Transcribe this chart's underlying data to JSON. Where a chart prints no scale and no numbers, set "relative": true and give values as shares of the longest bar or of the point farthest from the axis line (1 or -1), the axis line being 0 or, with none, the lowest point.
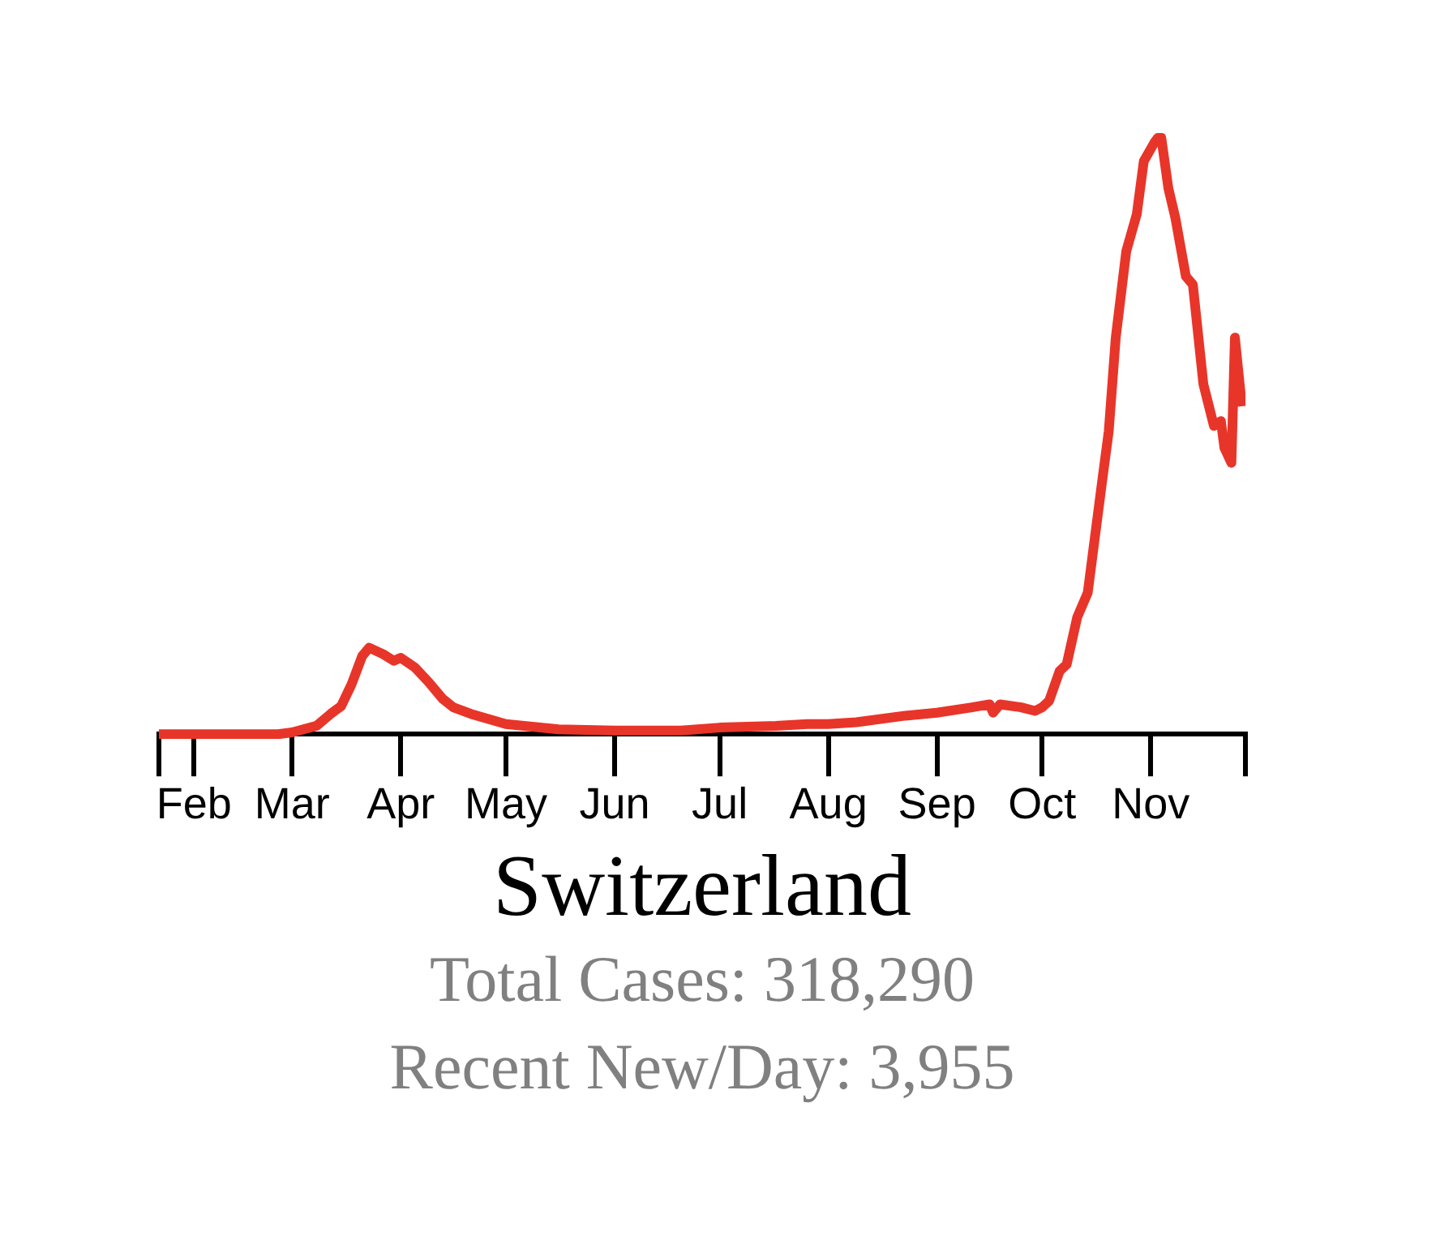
{
  "chart_data": {
    "type": "line",
    "title": "Switzerland",
    "annotations": [
      "Total Cases: 318,290",
      "Recent New/Day: 3,955"
    ],
    "relative": true,
    "legend": false,
    "grid": false,
    "marker": "none",
    "xlim": [
      "--01-22",
      "--11-28"
    ],
    "xticks": [
      {
        "value": "--02-01",
        "label": "Feb"
      },
      {
        "value": "--03-01",
        "label": "Mar"
      },
      {
        "value": "--04-01",
        "label": "Apr"
      },
      {
        "value": "--05-01",
        "label": "May"
      },
      {
        "value": "--06-01",
        "label": "Jun"
      },
      {
        "value": "--07-01",
        "label": "Jul"
      },
      {
        "value": "--08-01",
        "label": "Aug"
      },
      {
        "value": "--09-01",
        "label": "Sep"
      },
      {
        "value": "--10-01",
        "label": "Oct"
      },
      {
        "value": "--11-01",
        "label": "Nov"
      }
    ],
    "x": [
      "--01-22",
      "--02-25",
      "--03-01",
      "--03-08",
      "--03-12",
      "--03-15",
      "--03-18",
      "--03-21",
      "--03-23",
      "--03-27",
      "--03-30",
      "--04-01",
      "--04-05",
      "--04-09",
      "--04-13",
      "--04-16",
      "--04-21",
      "--05-01",
      "--05-16",
      "--06-01",
      "--06-20",
      "--07-01",
      "--07-17",
      "--07-26",
      "--08-01",
      "--08-09",
      "--08-23",
      "--09-01",
      "--09-11",
      "--09-16",
      "--09-17",
      "--09-19",
      "--09-25",
      "--09-29",
      "--10-01",
      "--10-03",
      "--10-06",
      "--10-08",
      "--10-11",
      "--10-14",
      "--10-18",
      "--10-20",
      "--10-22",
      "--10-25",
      "--10-28",
      "--10-30",
      "--11-02",
      "--11-03",
      "--11-04",
      "--11-06",
      "--11-08",
      "--11-11",
      "--11-13",
      "--11-16",
      "--11-19",
      "--11-21",
      "--11-22",
      "--11-24",
      "--11-25",
      "--11-27"
    ],
    "series": [
      {
        "color": "#e8352a",
        "values": [
          0,
          0,
          0.003,
          0.014,
          0.034,
          0.047,
          0.084,
          0.131,
          0.145,
          0.134,
          0.123,
          0.128,
          0.112,
          0.087,
          0.059,
          0.045,
          0.034,
          0.017,
          0.008,
          0.006,
          0.006,
          0.011,
          0.014,
          0.017,
          0.017,
          0.02,
          0.031,
          0.036,
          0.045,
          0.05,
          0.036,
          0.05,
          0.045,
          0.039,
          0.045,
          0.056,
          0.106,
          0.117,
          0.196,
          0.237,
          0.419,
          0.508,
          0.665,
          0.81,
          0.872,
          0.961,
          0.992,
          1,
          1,
          0.916,
          0.866,
          0.768,
          0.754,
          0.587,
          0.517,
          0.525,
          0.48,
          0.455,
          0.665,
          0.55
        ]
      }
    ]
  }
}
